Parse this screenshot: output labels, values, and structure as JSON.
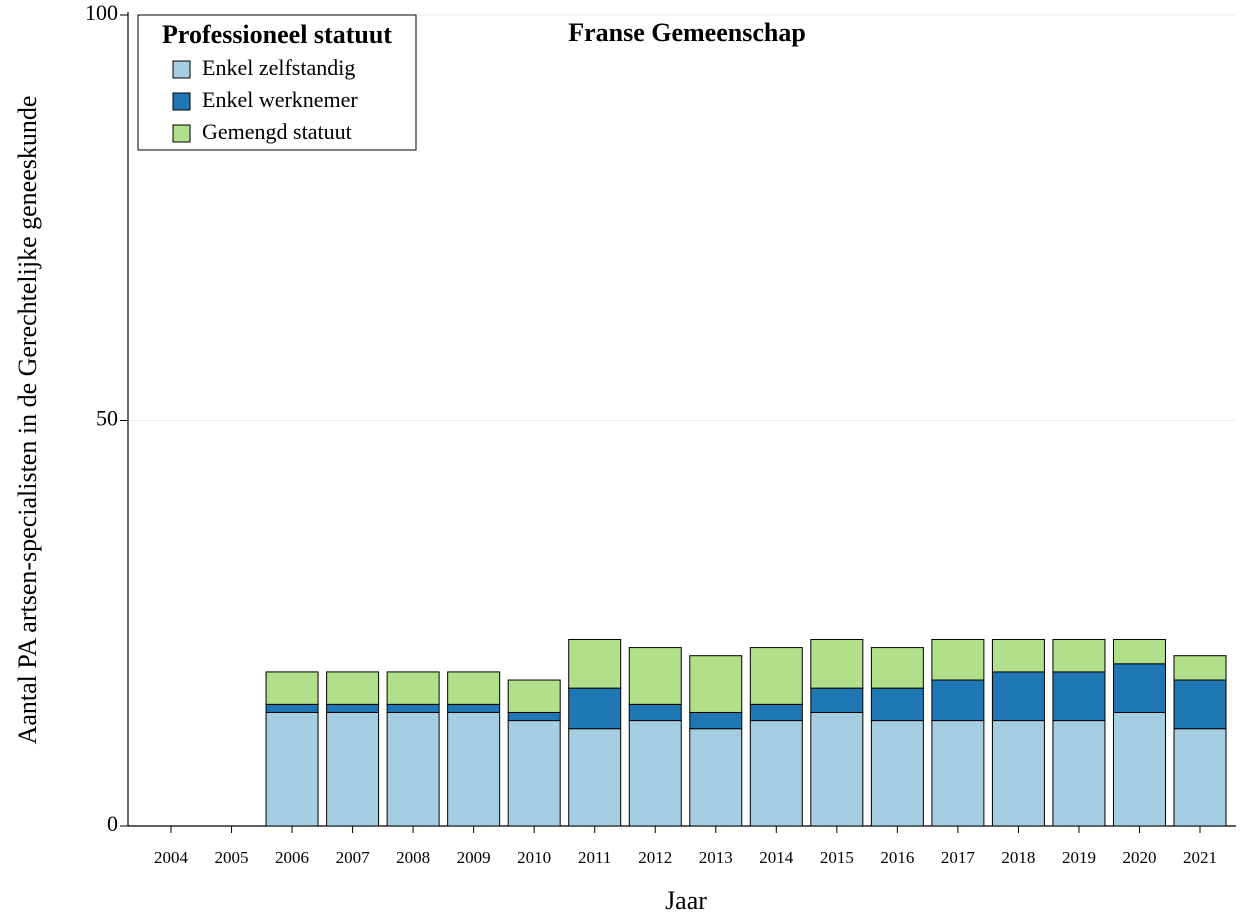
{
  "chart_data": {
    "type": "stacked_bar",
    "title": "Franse Gemeenschap",
    "xlabel": "Jaar",
    "ylabel": "Aantal PA artsen-specialisten in de Gerechtelijke geneeskunde",
    "legend_title": "Professioneel statuut",
    "legend": "upper left",
    "categories": [
      "2004",
      "2005",
      "2006",
      "2007",
      "2008",
      "2009",
      "2010",
      "2011",
      "2012",
      "2013",
      "2014",
      "2015",
      "2016",
      "2017",
      "2018",
      "2019",
      "2020",
      "2021"
    ],
    "series": [
      {
        "name": "Enkel zelfstandig",
        "color": "#a6cee3",
        "values": [
          null,
          null,
          14,
          14,
          14,
          14,
          13,
          12,
          13,
          12,
          13,
          14,
          13,
          13,
          13,
          13,
          14,
          12
        ]
      },
      {
        "name": "Enkel werknemer",
        "color": "#1f78b4",
        "values": [
          null,
          null,
          1,
          1,
          1,
          1,
          1,
          5,
          2,
          2,
          2,
          3,
          4,
          5,
          6,
          6,
          6,
          6
        ]
      },
      {
        "name": "Gemengd statuut",
        "color": "#b2df8a",
        "values": [
          null,
          null,
          4,
          4,
          4,
          4,
          4,
          6,
          7,
          7,
          7,
          6,
          5,
          5,
          4,
          4,
          3,
          3
        ]
      }
    ],
    "ylim": [
      0,
      100
    ],
    "yticks": [
      0,
      50,
      100
    ],
    "grid": true
  }
}
